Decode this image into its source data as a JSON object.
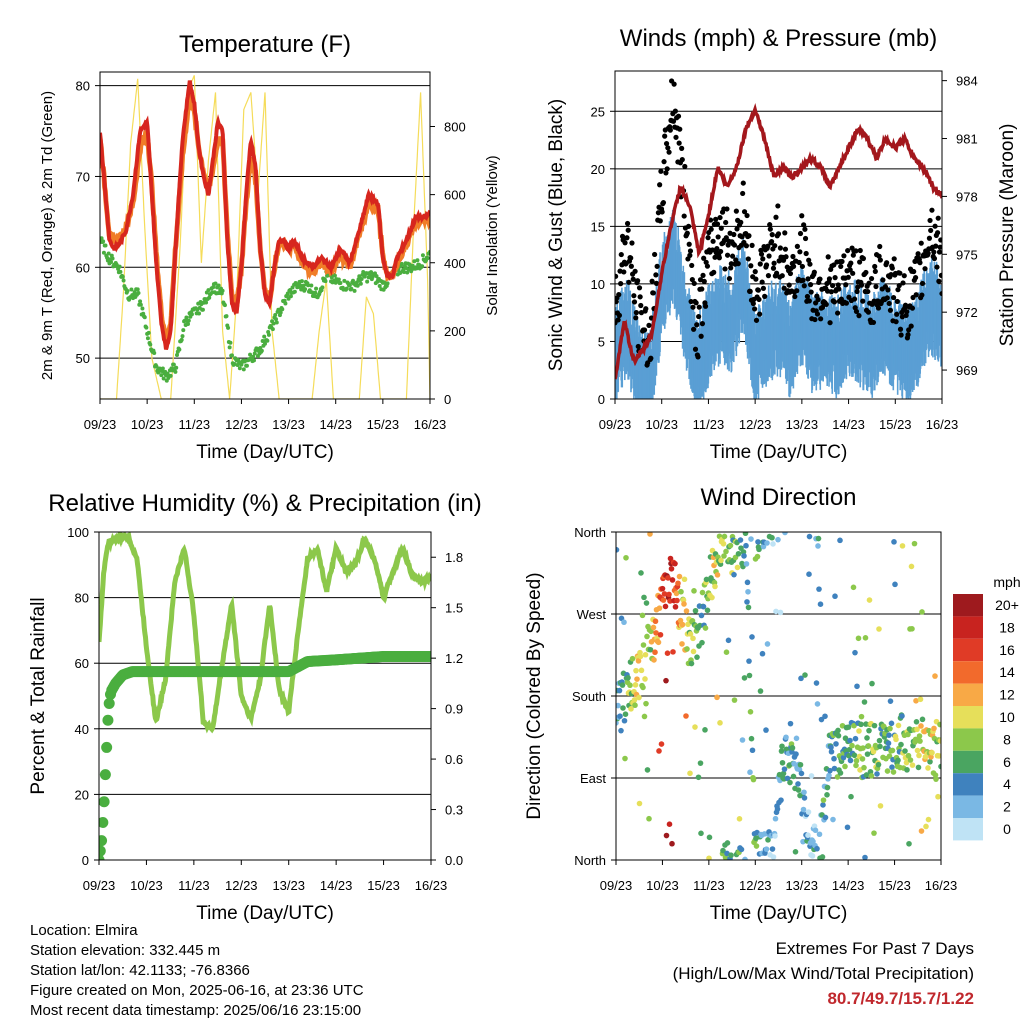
{
  "chart_data": [
    {
      "type": "line",
      "title": "Temperature (F)",
      "xlabel": "Time (Day/UTC)",
      "ylabel": "2m & 9m T (Red, Orange) & 2m Td (Green)",
      "y2label": "Solar Insolation (Yellow)",
      "x_ticks": [
        "09/23",
        "10/23",
        "11/23",
        "12/23",
        "13/23",
        "14/23",
        "15/23",
        "16/23"
      ],
      "ylim": [
        45.5,
        81.5
      ],
      "y_ticks": [
        50,
        60,
        70,
        80
      ],
      "y2lim": [
        0,
        960
      ],
      "y2_ticks": [
        0,
        200,
        400,
        600,
        800
      ],
      "grid": "horizontal",
      "colors": {
        "t2m": "#d7261e",
        "t9m": "#f07d28",
        "td": "#4aae3f",
        "solar": "#f5dc5a"
      },
      "series": [
        {
          "name": "2m T (Red)",
          "x": [
            0,
            0.1,
            0.2,
            0.3,
            0.4,
            0.55,
            0.7,
            0.85,
            1.0,
            1.1,
            1.2,
            1.3,
            1.4,
            1.5,
            1.6,
            1.75,
            1.9,
            2.0,
            2.1,
            2.2,
            2.3,
            2.4,
            2.5,
            2.6,
            2.7,
            2.8,
            2.9,
            3.0,
            3.1,
            3.2,
            3.3,
            3.4,
            3.5,
            3.6,
            3.7,
            3.8,
            3.9,
            4.0,
            4.1,
            4.2,
            4.3,
            4.5,
            4.7,
            4.9,
            5.1,
            5.3,
            5.5,
            5.7,
            5.9,
            6.0,
            6.1,
            6.2,
            6.3,
            6.5,
            6.7,
            6.9,
            7.0
          ],
          "values": [
            75,
            69,
            63,
            62,
            62.5,
            64,
            68,
            75,
            76,
            68,
            60,
            54,
            51,
            53,
            62,
            74,
            80.5,
            78,
            73,
            70,
            68,
            72,
            76,
            75,
            63,
            56,
            55,
            60,
            68,
            74,
            71,
            62,
            57,
            56,
            60,
            63,
            63,
            62,
            63,
            62,
            61,
            60,
            61,
            60,
            62,
            60.5,
            64,
            68,
            67,
            61,
            59,
            59,
            61,
            63,
            65.5,
            65.5,
            66
          ]
        },
        {
          "name": "9m T (Orange)",
          "x": [
            0,
            0.1,
            0.2,
            0.3,
            0.4,
            0.55,
            0.7,
            0.85,
            1.0,
            1.1,
            1.2,
            1.3,
            1.4,
            1.5,
            1.6,
            1.75,
            1.9,
            2.0,
            2.1,
            2.2,
            2.3,
            2.4,
            2.5,
            2.6,
            2.7,
            2.8,
            2.9,
            3.0,
            3.1,
            3.2,
            3.3,
            3.4,
            3.5,
            3.6,
            3.7,
            3.8,
            3.9,
            4.0,
            4.1,
            4.2,
            4.3,
            4.5,
            4.7,
            4.9,
            5.1,
            5.3,
            5.5,
            5.7,
            5.9,
            6.0,
            6.1,
            6.2,
            6.3,
            6.5,
            6.7,
            6.9,
            7.0
          ],
          "values": [
            74.5,
            69,
            63.5,
            63,
            63,
            64.5,
            67,
            73,
            75,
            69,
            61,
            55,
            52,
            54,
            62,
            72,
            79,
            77,
            73,
            70.5,
            68.5,
            71,
            74,
            74,
            64,
            57,
            56,
            60,
            67,
            72,
            70,
            62,
            57.5,
            56.5,
            60,
            62.5,
            62.5,
            62,
            62.5,
            61.5,
            60.5,
            59.5,
            60.5,
            59.5,
            61.5,
            60,
            63.5,
            67,
            66.5,
            61,
            59,
            59,
            60.5,
            62.5,
            65,
            65,
            65.5
          ]
        },
        {
          "name": "2m Td (Green)",
          "x": [
            0,
            0.2,
            0.4,
            0.6,
            0.8,
            1.0,
            1.2,
            1.4,
            1.6,
            1.8,
            2.0,
            2.2,
            2.4,
            2.6,
            2.8,
            3.0,
            3.2,
            3.4,
            3.6,
            3.8,
            4.0,
            4.2,
            4.4,
            4.6,
            4.8,
            5.0,
            5.2,
            5.4,
            5.6,
            5.8,
            6.0,
            6.2,
            6.4,
            6.6,
            6.8,
            7.0
          ],
          "values": [
            63,
            61,
            60,
            57,
            57,
            53,
            49,
            48,
            49,
            54,
            55,
            56,
            58,
            57,
            50,
            49,
            50,
            51,
            53,
            55,
            57,
            58,
            58,
            57,
            59,
            58.5,
            58,
            58,
            59,
            59,
            58,
            59,
            60,
            60,
            60.5,
            61.5
          ]
        },
        {
          "name": "Solar Insolation (Yellow)",
          "axis": "y2",
          "x": [
            0.0,
            0.35,
            0.5,
            0.65,
            0.8,
            0.95,
            1.1,
            1.3,
            1.5,
            1.7,
            1.85,
            2.0,
            2.15,
            2.3,
            2.45,
            2.6,
            2.75,
            2.9,
            3.05,
            3.2,
            3.35,
            3.5,
            3.65,
            3.8,
            3.95,
            4.1,
            4.3,
            4.5,
            4.65,
            4.8,
            4.95,
            5.1,
            5.3,
            5.5,
            5.65,
            5.8,
            5.95,
            6.1,
            6.3,
            6.5,
            6.65,
            6.8,
            6.95,
            7.0
          ],
          "values": [
            0,
            0,
            320,
            750,
            940,
            500,
            120,
            0,
            0,
            450,
            900,
            950,
            400,
            700,
            900,
            200,
            0,
            300,
            850,
            900,
            600,
            900,
            200,
            0,
            0,
            0,
            0,
            0,
            200,
            350,
            0,
            0,
            0,
            0,
            300,
            250,
            0,
            0,
            0,
            0,
            500,
            900,
            350,
            0
          ]
        }
      ]
    },
    {
      "type": "scatter",
      "title": "Winds (mph) & Pressure (mb)",
      "xlabel": "Time (Day/UTC)",
      "ylabel": "Sonic Wind & Gust (Blue, Black)",
      "y2label": "Station Pressure (Maroon)",
      "x_ticks": [
        "09/23",
        "10/23",
        "11/23",
        "12/23",
        "13/23",
        "14/23",
        "15/23",
        "16/23"
      ],
      "ylim": [
        0,
        28.5
      ],
      "y_ticks": [
        0,
        5,
        10,
        15,
        20,
        25
      ],
      "y2lim": [
        967.5,
        984.5
      ],
      "y2_ticks": [
        969,
        972,
        975,
        978,
        981,
        984
      ],
      "grid": "horizontal",
      "colors": {
        "wind": "#5a9fd4",
        "gust": "#000000",
        "pressure": "#a3171c"
      },
      "series": [
        {
          "name": "Sonic Wind (Blue)",
          "x": [
            0,
            0.25,
            0.5,
            0.75,
            1.0,
            1.25,
            1.5,
            1.75,
            2.0,
            2.25,
            2.5,
            2.75,
            3.0,
            3.25,
            3.5,
            3.75,
            4.0,
            4.25,
            4.5,
            4.75,
            5.0,
            5.25,
            5.5,
            5.75,
            6.0,
            6.25,
            6.5,
            6.75,
            7.0
          ],
          "values": [
            4,
            7,
            3,
            2,
            10,
            13,
            8,
            3,
            6,
            8,
            7,
            11,
            4,
            6,
            7,
            5,
            8,
            5,
            6,
            5,
            7,
            6,
            5,
            7,
            5,
            4,
            6,
            9,
            7
          ]
        },
        {
          "name": "Gust (Black)",
          "x": [
            0,
            0.25,
            0.5,
            0.75,
            1.0,
            1.25,
            1.5,
            1.75,
            2.0,
            2.25,
            2.5,
            2.75,
            3.0,
            3.25,
            3.5,
            3.75,
            4.0,
            4.25,
            4.5,
            4.75,
            5.0,
            5.25,
            5.5,
            5.75,
            6.0,
            6.25,
            6.5,
            6.75,
            7.0
          ],
          "values": [
            8,
            14,
            7,
            5,
            18,
            26.5,
            17,
            6,
            12,
            15,
            13,
            16,
            9,
            12,
            14,
            10,
            13,
            9,
            10,
            9,
            11,
            10,
            9,
            11,
            9,
            8,
            10,
            15,
            12
          ]
        },
        {
          "name": "Station Pressure (Maroon)",
          "axis": "y2",
          "x": [
            0,
            0.2,
            0.4,
            0.6,
            0.8,
            1.0,
            1.2,
            1.4,
            1.6,
            1.8,
            2.0,
            2.2,
            2.4,
            2.6,
            2.8,
            3.0,
            3.2,
            3.4,
            3.6,
            3.8,
            4.0,
            4.2,
            4.4,
            4.6,
            4.8,
            5.0,
            5.2,
            5.4,
            5.6,
            5.8,
            6.0,
            6.2,
            6.4,
            6.6,
            6.8,
            7.0
          ],
          "values": [
            968.5,
            971.5,
            969.5,
            970,
            971,
            974,
            976.5,
            978.5,
            977.5,
            975,
            977,
            979.5,
            978.5,
            979.5,
            981.5,
            982.5,
            981,
            979,
            979.5,
            979,
            979.5,
            980,
            979.5,
            978.5,
            979.5,
            980.5,
            981.5,
            981,
            980,
            981,
            980.5,
            981,
            980,
            979.5,
            978.5,
            978
          ]
        }
      ]
    },
    {
      "type": "line",
      "title": "Relative Humidity (%) & Precipitation (in)",
      "xlabel": "Time (Day/UTC)",
      "ylabel": "Percent & Total Rainfall",
      "x_ticks": [
        "09/23",
        "10/23",
        "11/23",
        "12/23",
        "13/23",
        "14/23",
        "15/23",
        "16/23"
      ],
      "ylim": [
        0,
        100
      ],
      "y_ticks": [
        0,
        20,
        40,
        60,
        80,
        100
      ],
      "y2lim": [
        0,
        1.95
      ],
      "y2_ticks": [
        "0.0",
        "0.3",
        "0.6",
        "0.9",
        "1.2",
        "1.5",
        "1.8"
      ],
      "grid": "horizontal",
      "colors": {
        "rh": "#8cc84b",
        "precip": "#4aae3f"
      },
      "series": [
        {
          "name": "Relative Humidity",
          "x": [
            0,
            0.1,
            0.2,
            0.4,
            0.6,
            0.8,
            1.0,
            1.2,
            1.4,
            1.6,
            1.8,
            2.0,
            2.2,
            2.4,
            2.6,
            2.8,
            3.0,
            3.2,
            3.4,
            3.6,
            3.8,
            4.0,
            4.2,
            4.4,
            4.6,
            4.8,
            5.0,
            5.2,
            5.4,
            5.6,
            5.8,
            6.0,
            6.2,
            6.4,
            6.6,
            6.8,
            7.0
          ],
          "values": [
            66,
            88,
            97,
            98,
            99,
            92,
            65,
            42,
            55,
            85,
            95,
            75,
            42,
            40,
            60,
            78,
            50,
            43,
            55,
            78,
            52,
            45,
            70,
            92,
            95,
            82,
            95,
            88,
            90,
            98,
            92,
            80,
            88,
            95,
            87,
            85,
            86
          ]
        },
        {
          "name": "Total Rainfall",
          "axis": "y2",
          "x": [
            0,
            0.05,
            0.1,
            0.15,
            0.2,
            0.25,
            0.35,
            0.5,
            0.7,
            1.0,
            2.0,
            3.0,
            4.0,
            4.2,
            4.4,
            5.0,
            5.5,
            6.0,
            6.5,
            7.0
          ],
          "values": [
            0,
            0.1,
            0.3,
            0.6,
            0.9,
            1.0,
            1.05,
            1.1,
            1.12,
            1.12,
            1.12,
            1.12,
            1.12,
            1.15,
            1.18,
            1.19,
            1.2,
            1.21,
            1.21,
            1.21
          ]
        }
      ]
    },
    {
      "type": "scatter",
      "title": "Wind Direction",
      "xlabel": "Time (Day/UTC)",
      "ylabel": "Direction (Colored By Speed)",
      "x_ticks": [
        "09/23",
        "10/23",
        "11/23",
        "12/23",
        "13/23",
        "14/23",
        "15/23",
        "16/23"
      ],
      "y_ticks": [
        "North",
        "East",
        "South",
        "West",
        "North"
      ],
      "ylim": [
        0,
        360
      ],
      "grid": "horizontal",
      "colorbar": {
        "unit": "mph",
        "labels": [
          "20+",
          "18",
          "16",
          "14",
          "12",
          "10",
          "8",
          "6",
          "4",
          "2",
          "0"
        ],
        "colors": [
          "#9e1a1e",
          "#c8231f",
          "#e03b26",
          "#f26a2c",
          "#f8a946",
          "#e6df5a",
          "#8cc84b",
          "#4aa561",
          "#3f82be",
          "#7ab8e4",
          "#bfe3f5"
        ]
      },
      "series": [
        {
          "name": "Direction",
          "x": [
            0.1,
            0.2,
            0.3,
            0.5,
            0.7,
            0.9,
            1.0,
            1.1,
            1.2,
            1.4,
            1.5,
            1.6,
            1.8,
            2.0,
            2.2,
            2.4,
            2.6,
            2.8,
            3.0,
            3.2,
            3.4,
            3.6,
            3.8,
            4.0,
            4.2,
            4.4,
            4.6,
            4.8,
            5.0,
            5.3,
            5.6,
            5.9,
            6.2,
            6.5,
            6.8,
            7.0
          ],
          "values": [
            170,
            180,
            190,
            200,
            230,
            260,
            280,
            300,
            310,
            270,
            250,
            240,
            250,
            300,
            340,
            350,
            340,
            350,
            0,
            10,
            5,
            120,
            100,
            80,
            10,
            5,
            110,
            120,
            130,
            120,
            120,
            125,
            130,
            125,
            125,
            120
          ],
          "speeds": [
            4,
            6,
            8,
            10,
            8,
            12,
            16,
            18,
            20,
            10,
            12,
            9,
            6,
            8,
            10,
            6,
            8,
            4,
            6,
            3,
            2,
            4,
            5,
            3,
            2,
            4,
            5,
            6,
            6,
            7,
            8,
            6,
            8,
            9,
            10,
            8
          ]
        }
      ]
    }
  ],
  "footer": {
    "location": "Location: Elmira",
    "elevation": "Station elevation: 332.445 m",
    "latlon": "Station lat/lon: 42.1133; -76.8366",
    "created": "Figure created on Mon, 2025-06-16, at 23:36 UTC",
    "recent": "Most recent data timestamp: 2025/06/16 23:15:00"
  },
  "extremes": {
    "line1": "Extremes For Past 7 Days",
    "line2": "(High/Low/Max Wind/Total Precipitation)",
    "values": "80.7/49.7/15.7/1.22"
  }
}
